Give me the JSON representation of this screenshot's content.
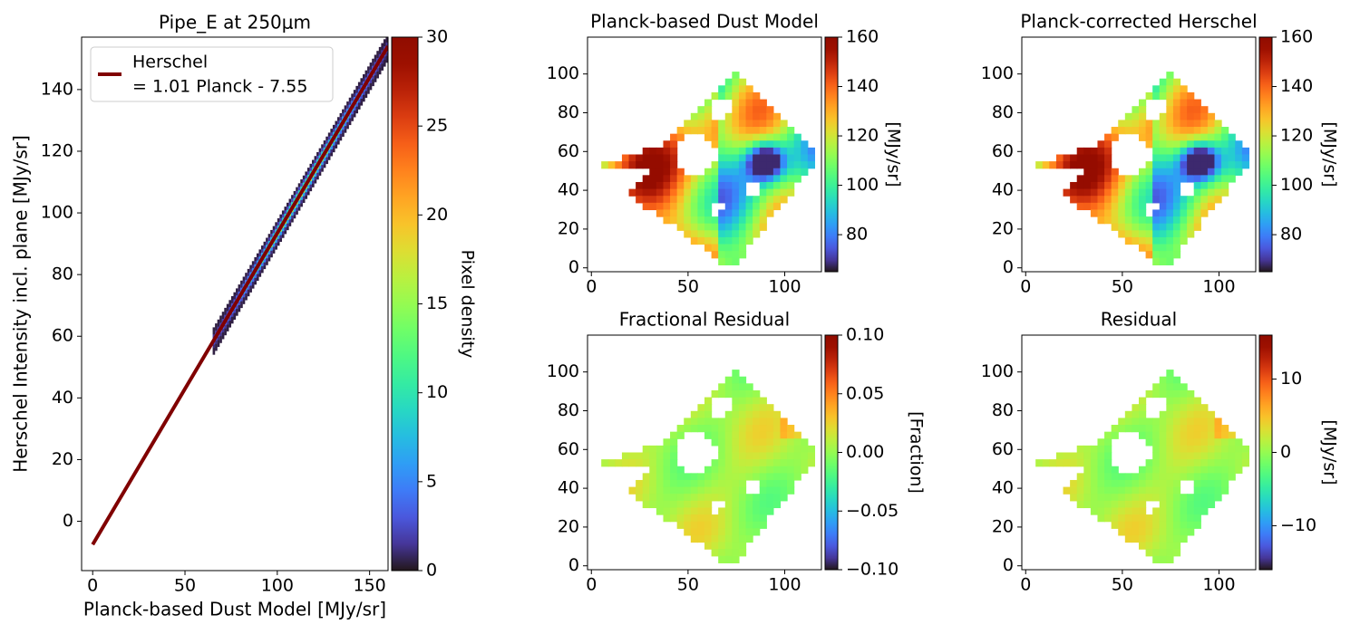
{
  "colormap": "turbo",
  "chart_data": [
    {
      "type": "heatmap",
      "variant": "2d-density-with-fit",
      "title": "Pipe_E at 250μm",
      "xlabel": "Planck-based Dust Model [MJy/sr]",
      "ylabel": "Herschel Intensity incl. plane [MJy/sr]",
      "xlim": [
        -6,
        160
      ],
      "ylim": [
        -16,
        157
      ],
      "xticks": [
        0,
        50,
        100,
        150
      ],
      "yticks": [
        0,
        20,
        40,
        60,
        80,
        100,
        120,
        140
      ],
      "colorbar": {
        "label": "Pixel density",
        "range": [
          0,
          30
        ],
        "ticks": [
          0,
          5,
          10,
          15,
          20,
          25,
          30
        ]
      },
      "fit": {
        "slope": 1.01,
        "intercept": -7.55,
        "x_range": [
          0,
          160
        ],
        "color": "#800000"
      },
      "density_x_range": [
        65,
        160
      ],
      "legend": {
        "label": "Herschel\n= 1.01 Planck - 7.55",
        "line1": "Herschel",
        "line2": "= 1.01 Planck - 7.55",
        "placement": "upper-left"
      }
    },
    {
      "type": "heatmap",
      "title": "Planck-based Dust Model",
      "xlim": [
        -2,
        119
      ],
      "ylim": [
        -2,
        119
      ],
      "xticks": [
        0,
        50,
        100
      ],
      "yticks": [
        0,
        20,
        40,
        60,
        80,
        100
      ],
      "colorbar": {
        "label": "[MJy/sr]",
        "range": [
          65,
          160
        ],
        "ticks": [
          80,
          100,
          120,
          140,
          160
        ]
      },
      "field": "intensity"
    },
    {
      "type": "heatmap",
      "title": "Planck-corrected Herschel",
      "xlim": [
        -2,
        119
      ],
      "ylim": [
        -2,
        119
      ],
      "xticks": [
        0,
        50,
        100
      ],
      "yticks": [
        0,
        20,
        40,
        60,
        80,
        100
      ],
      "colorbar": {
        "label": "[MJy/sr]",
        "range": [
          65,
          160
        ],
        "ticks": [
          80,
          100,
          120,
          140,
          160
        ]
      },
      "field": "intensity"
    },
    {
      "type": "heatmap",
      "title": "Fractional Residual",
      "xlim": [
        -2,
        119
      ],
      "ylim": [
        -2,
        119
      ],
      "xticks": [
        0,
        50,
        100
      ],
      "yticks": [
        0,
        20,
        40,
        60,
        80,
        100
      ],
      "colorbar": {
        "label": "[Fraction]",
        "range": [
          -0.1,
          0.1
        ],
        "ticks": [
          -0.1,
          -0.05,
          0.0,
          0.05,
          0.1
        ],
        "tick_labels": [
          "−0.10",
          "−0.05",
          "0.00",
          "0.05",
          "0.10"
        ]
      },
      "field": "fractional-residual"
    },
    {
      "type": "heatmap",
      "title": "Residual",
      "xlim": [
        -2,
        119
      ],
      "ylim": [
        -2,
        119
      ],
      "xticks": [
        0,
        50,
        100
      ],
      "yticks": [
        0,
        20,
        40,
        60,
        80,
        100
      ],
      "colorbar": {
        "label": "[MJy/sr]",
        "range": [
          -16,
          16
        ],
        "ticks": [
          -10,
          0,
          10
        ],
        "tick_labels": [
          "−10",
          "0",
          "10"
        ]
      },
      "field": "residual"
    }
  ]
}
